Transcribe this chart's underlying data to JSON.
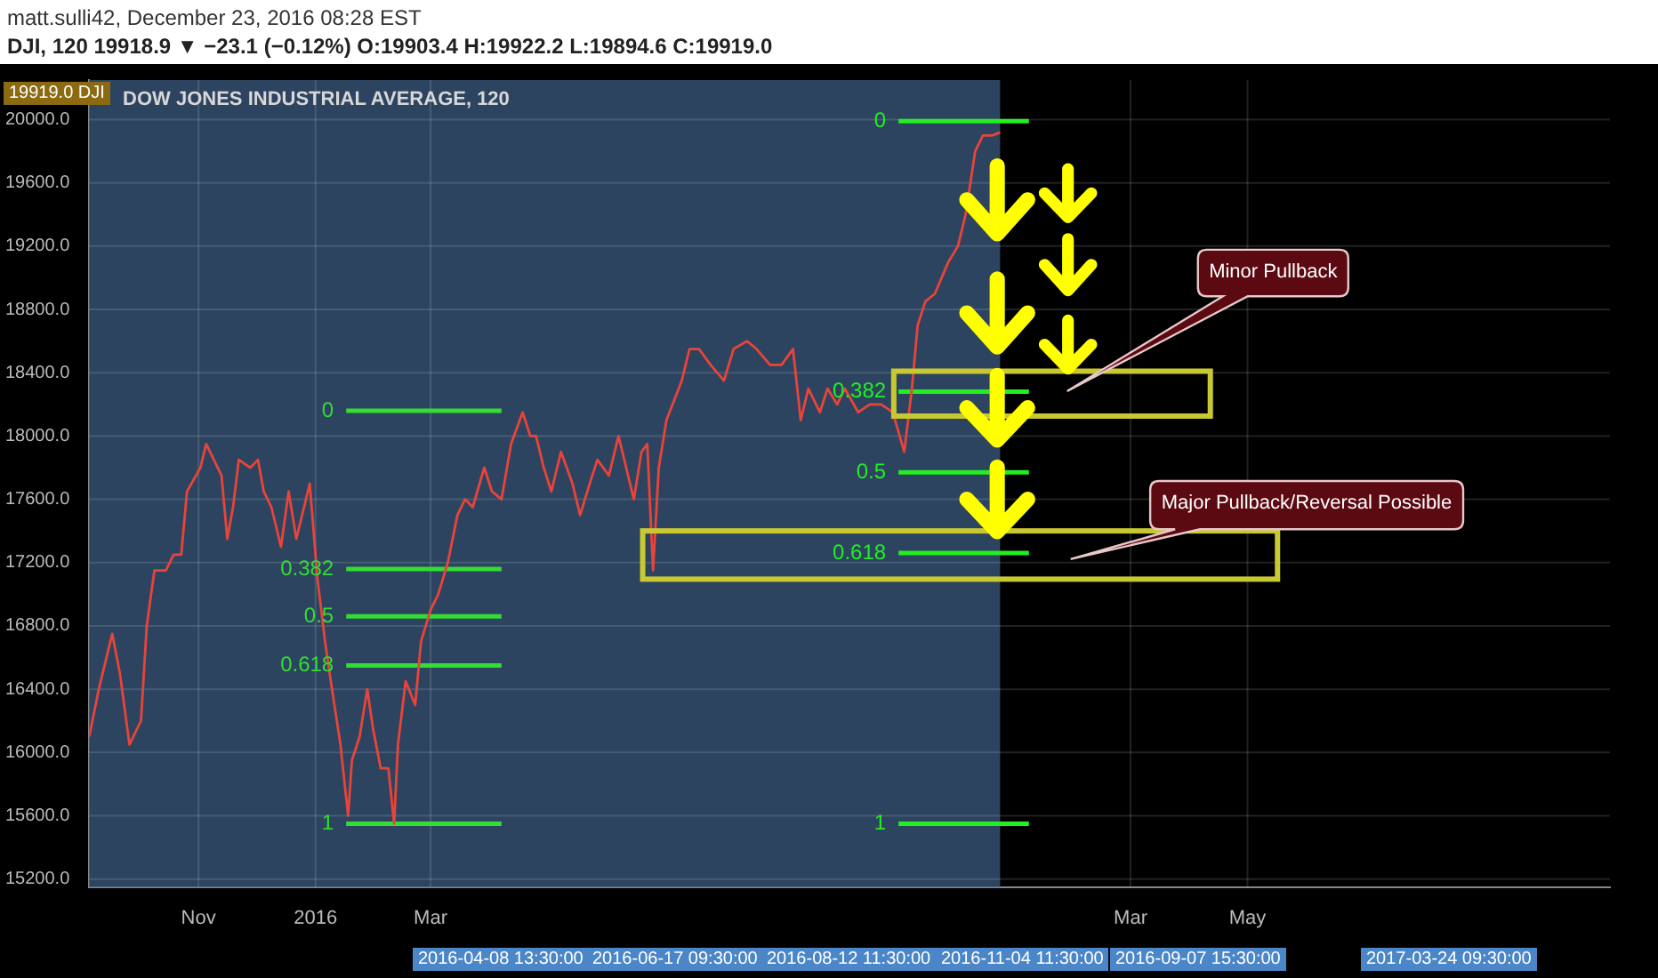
{
  "chart_data": {
    "type": "line",
    "title": "matt.sulli42, December 23, 2016 08:28 EST",
    "subtitle": "DJI, 120  19918.9 ▼ −23.1 (−0.12%) O:19903.4 H:19922.2 L:19894.6 C:19919.0",
    "annotations": [
      "DOW JONES INDUSTRIAL AVERAGE, 120",
      "Minor Pullback",
      "Major Pullback/Reversal Possible",
      "19919.0 DJI",
      "2016-04-08 13:30:00",
      "2016-06-17 09:30:00",
      "2016-08-12 11:30:00",
      "2016-11-04 11:30:00",
      "2016-09-07 15:30:00",
      "2017-03-24 09:30:00"
    ],
    "series": [
      {
        "color": "#e8443a",
        "x": [
          "2015-09-05",
          "2015-09-10",
          "2015-09-17",
          "2015-09-21",
          "2015-09-26",
          "2015-10-02",
          "2015-10-05",
          "2015-10-09",
          "2015-10-15",
          "2015-10-19",
          "2015-10-23",
          "2015-10-26",
          "2015-11-02",
          "2015-11-05",
          "2015-11-09",
          "2015-11-13",
          "2015-11-16",
          "2015-11-19",
          "2015-11-22",
          "2015-11-28",
          "2015-12-02",
          "2015-12-05",
          "2015-12-09",
          "2015-12-14",
          "2015-12-18",
          "2015-12-22",
          "2015-12-26",
          "2015-12-29",
          "2016-01-02",
          "2016-01-06",
          "2016-01-09",
          "2016-01-14",
          "2016-01-18",
          "2016-01-20",
          "2016-01-24",
          "2016-01-28",
          "2016-01-31",
          "2016-02-04",
          "2016-02-08",
          "2016-02-11",
          "2016-02-13",
          "2016-02-17",
          "2016-02-22",
          "2016-02-25",
          "2016-03-01",
          "2016-03-05",
          "2016-03-10",
          "2016-03-15",
          "2016-03-19",
          "2016-03-23",
          "2016-03-29",
          "2016-04-02",
          "2016-04-07",
          "2016-04-12",
          "2016-04-18",
          "2016-04-22",
          "2016-04-25",
          "2016-04-29",
          "2016-05-03",
          "2016-05-08",
          "2016-05-14",
          "2016-05-18",
          "2016-05-23",
          "2016-05-27",
          "2016-06-02",
          "2016-06-07",
          "2016-06-11",
          "2016-06-15",
          "2016-06-19",
          "2016-06-22",
          "2016-06-25",
          "2016-06-28",
          "2016-07-02",
          "2016-07-10",
          "2016-07-14",
          "2016-07-19",
          "2016-07-25",
          "2016-08-01",
          "2016-08-06",
          "2016-08-13",
          "2016-08-18",
          "2016-08-25",
          "2016-08-31",
          "2016-09-06",
          "2016-09-10",
          "2016-09-14",
          "2016-09-20",
          "2016-09-24",
          "2016-09-29",
          "2016-10-03",
          "2016-10-10",
          "2016-10-16",
          "2016-10-22",
          "2016-10-28",
          "2016-11-03",
          "2016-11-07",
          "2016-11-10",
          "2016-11-14",
          "2016-11-19",
          "2016-11-26",
          "2016-12-01",
          "2016-12-05",
          "2016-12-10",
          "2016-12-14",
          "2016-12-19",
          "2016-12-23"
        ],
        "values": [
          16100,
          16400,
          16750,
          16500,
          16050,
          16200,
          16800,
          17150,
          17150,
          17250,
          17250,
          17650,
          17800,
          17950,
          17850,
          17750,
          17350,
          17550,
          17850,
          17800,
          17850,
          17650,
          17550,
          17300,
          17650,
          17350,
          17550,
          17700,
          17100,
          16700,
          16450,
          16050,
          15600,
          15950,
          16100,
          16400,
          16150,
          15900,
          15900,
          15550,
          16050,
          16450,
          16300,
          16700,
          16900,
          17000,
          17200,
          17500,
          17600,
          17550,
          17800,
          17650,
          17600,
          17950,
          18150,
          18000,
          18000,
          17800,
          17650,
          17900,
          17700,
          17500,
          17700,
          17850,
          17750,
          18000,
          17800,
          17600,
          17900,
          17950,
          17150,
          17800,
          18100,
          18350,
          18550,
          18550,
          18450,
          18350,
          18550,
          18600,
          18550,
          18450,
          18450,
          18550,
          18100,
          18300,
          18150,
          18300,
          18200,
          18300,
          18150,
          18200,
          18200,
          18150,
          17900,
          18300,
          18700,
          18850,
          18900,
          19100,
          19200,
          19400,
          19800,
          19900,
          19900,
          19919
        ]
      },
      {
        "name": "0",
        "color": "#33dd33",
        "x": [
          "2016-01-17",
          "2016-04-07"
        ],
        "values": [
          18160,
          18160
        ]
      },
      {
        "name": "0.382",
        "color": "#33dd33",
        "x": [
          "2016-01-17",
          "2016-04-07"
        ],
        "values": [
          17160,
          17160
        ]
      },
      {
        "name": "0.5",
        "color": "#33dd33",
        "x": [
          "2016-01-17",
          "2016-04-07"
        ],
        "values": [
          16860,
          16860
        ]
      },
      {
        "name": "0.618",
        "color": "#33dd33",
        "x": [
          "2016-01-17",
          "2016-04-07"
        ],
        "values": [
          16550,
          16550
        ]
      },
      {
        "name": "1",
        "color": "#33dd33",
        "x": [
          "2016-01-17",
          "2016-04-07"
        ],
        "values": [
          15550,
          15550
        ]
      },
      {
        "name": "0",
        "color": "#22ee22",
        "x": [
          "2016-10-31",
          "2017-01-07"
        ],
        "values": [
          19990,
          19990
        ]
      },
      {
        "name": "0.382",
        "color": "#22ee22",
        "x": [
          "2016-10-31",
          "2017-01-07"
        ],
        "values": [
          18280,
          18280
        ]
      },
      {
        "name": "0.5",
        "color": "#22ee22",
        "x": [
          "2016-10-31",
          "2017-01-07"
        ],
        "values": [
          17770,
          17770
        ]
      },
      {
        "name": "0.618",
        "color": "#22ee22",
        "x": [
          "2016-10-31",
          "2017-01-07"
        ],
        "values": [
          17260,
          17260
        ]
      },
      {
        "name": "1",
        "color": "#22ee22",
        "x": [
          "2016-10-31",
          "2017-01-07"
        ],
        "values": [
          15550,
          15550
        ]
      }
    ],
    "xlim": [
      "2015-09-05",
      "2017-11-06"
    ],
    "xticks": [
      {
        "value": "2015-11-01",
        "label": "Nov"
      },
      {
        "value": "2016-01-01",
        "label": "2016"
      },
      {
        "value": "2016-03-01",
        "label": "Mar"
      },
      {
        "value": "2017-03-01",
        "label": "Mar"
      },
      {
        "value": "2017-05-01",
        "label": "May"
      }
    ],
    "ylim": [
      15150,
      20250
    ],
    "yticks": [
      {
        "value": 15200,
        "label": "15200.0"
      },
      {
        "value": 15600,
        "label": "15600.0"
      },
      {
        "value": 16000,
        "label": "16000.0"
      },
      {
        "value": 16400,
        "label": "16400.0"
      },
      {
        "value": 16800,
        "label": "16800.0"
      },
      {
        "value": 17200,
        "label": "17200.0"
      },
      {
        "value": 17600,
        "label": "17600.0"
      },
      {
        "value": 18000,
        "label": "18000.0"
      },
      {
        "value": 18400,
        "label": "18400.0"
      },
      {
        "value": 18800,
        "label": "18800.0"
      },
      {
        "value": 19200,
        "label": "19200.0"
      },
      {
        "value": 19600,
        "label": "19600.0"
      },
      {
        "value": 20000,
        "label": "20000.0"
      }
    ],
    "bands": [
      {
        "axis": "x",
        "from": "2015-09-05",
        "to": "2016-12-23",
        "color": "#2c4460"
      }
    ],
    "grid": true,
    "legend": false
  }
}
